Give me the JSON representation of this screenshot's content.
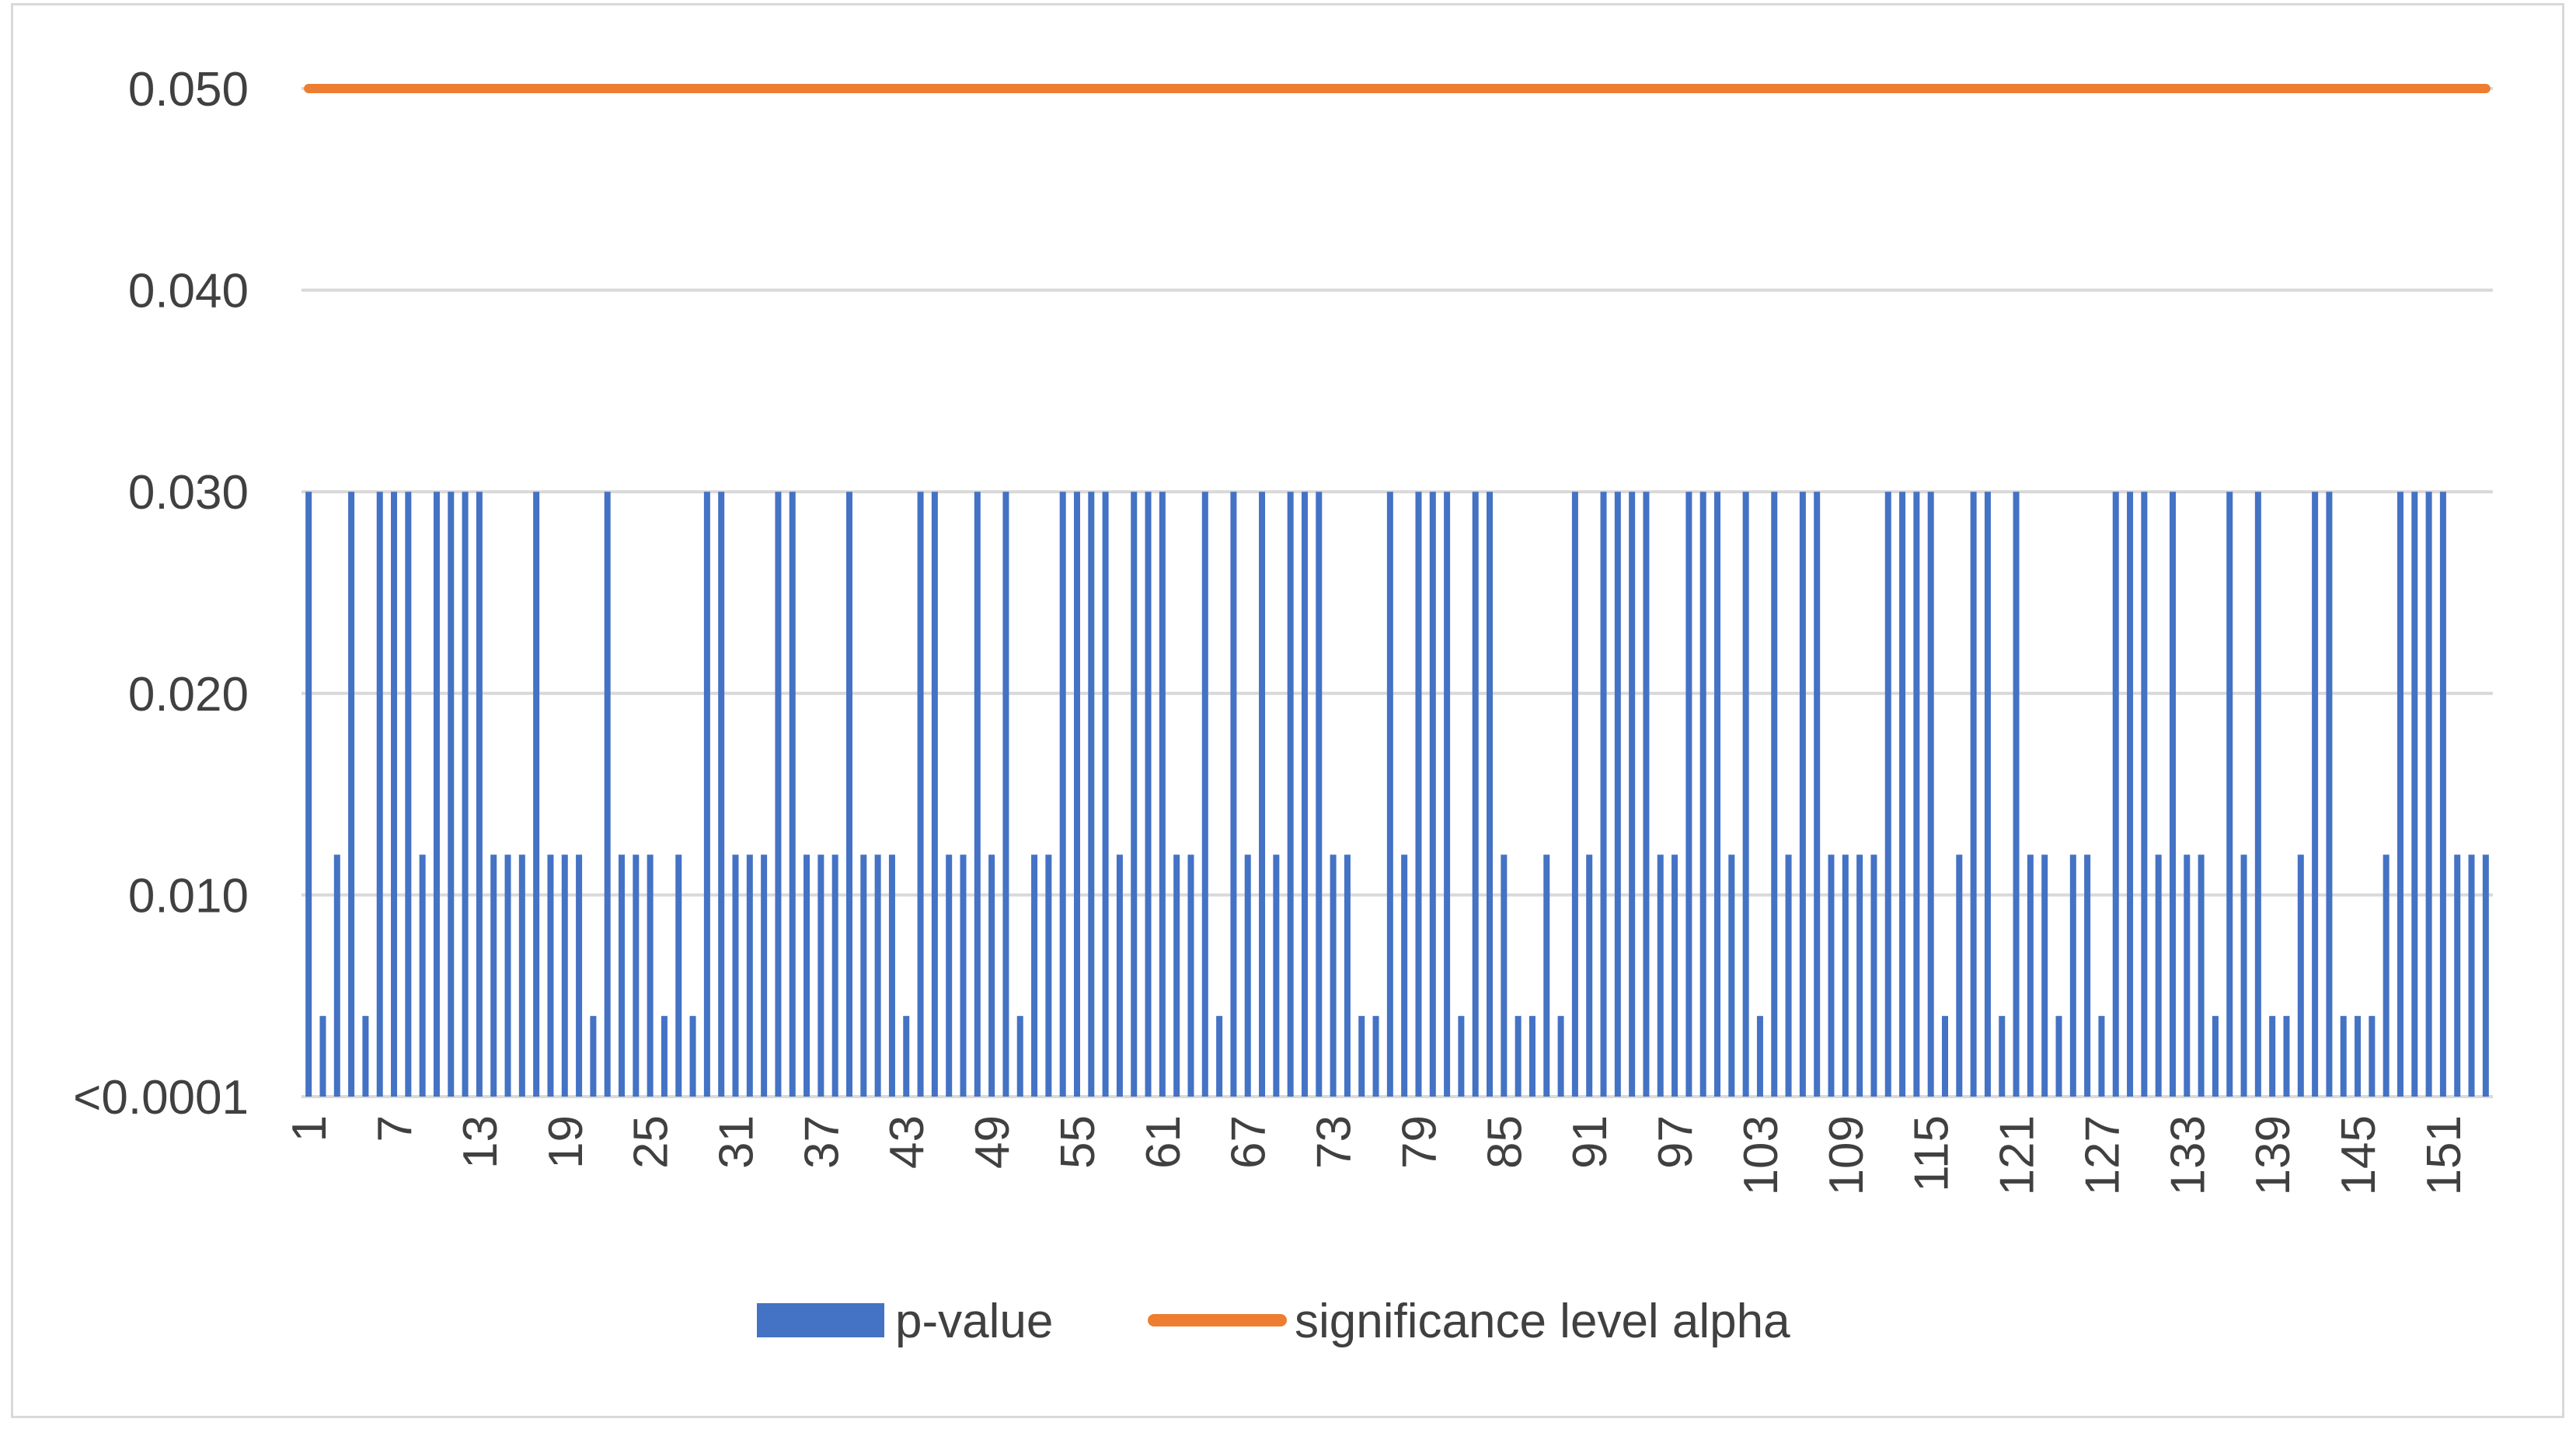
{
  "chart_data": {
    "type": "bar",
    "title": "",
    "xlabel": "",
    "ylabel": "",
    "ylim": [
      0,
      0.05
    ],
    "y_ticks": [
      {
        "value": 0.05,
        "label": "0.050"
      },
      {
        "value": 0.04,
        "label": "0.040"
      },
      {
        "value": 0.03,
        "label": "0.030"
      },
      {
        "value": 0.02,
        "label": "0.020"
      },
      {
        "value": 0.01,
        "label": "0.010"
      },
      {
        "value": 0,
        "label": "<0.0001"
      }
    ],
    "grid": true,
    "legend_position": "bottom",
    "x": [
      1,
      2,
      3,
      4,
      5,
      6,
      7,
      8,
      9,
      10,
      11,
      12,
      13,
      14,
      15,
      16,
      17,
      18,
      19,
      20,
      21,
      22,
      23,
      24,
      25,
      26,
      27,
      28,
      29,
      30,
      31,
      32,
      33,
      34,
      35,
      36,
      37,
      38,
      39,
      40,
      41,
      42,
      43,
      44,
      45,
      46,
      47,
      48,
      49,
      50,
      51,
      52,
      53,
      54,
      55,
      56,
      57,
      58,
      59,
      60,
      61,
      62,
      63,
      64,
      65,
      66,
      67,
      68,
      69,
      70,
      71,
      72,
      73,
      74,
      75,
      76,
      77,
      78,
      79,
      80,
      81,
      82,
      83,
      84,
      85,
      86,
      87,
      88,
      89,
      90,
      91,
      92,
      93,
      94,
      95,
      96,
      97,
      98,
      99,
      100,
      101,
      102,
      103,
      104,
      105,
      106,
      107,
      108,
      109,
      110,
      111,
      112,
      113,
      114,
      115,
      116,
      117,
      118,
      119,
      120,
      121,
      122,
      123,
      124,
      125,
      126,
      127,
      128,
      129,
      130,
      131,
      132,
      133,
      134,
      135,
      136,
      137,
      138,
      139,
      140,
      141,
      142,
      143,
      144,
      145,
      146,
      147,
      148,
      149,
      150,
      151,
      152,
      153,
      154
    ],
    "x_tick_labels": [
      "1",
      "7",
      "13",
      "19",
      "25",
      "31",
      "37",
      "43",
      "49",
      "55",
      "61",
      "67",
      "73",
      "79",
      "85",
      "91",
      "97",
      "103",
      "109",
      "115",
      "121",
      "127",
      "133",
      "139",
      "145",
      "151"
    ],
    "series": [
      {
        "name": "p-value",
        "type": "bar",
        "color": "#4472c4",
        "values": [
          0.03,
          0.004,
          0.012,
          0.03,
          0.004,
          0.03,
          0.03,
          0.03,
          0.012,
          0.03,
          0.03,
          0.03,
          0.03,
          0.012,
          0.012,
          0.012,
          0.03,
          0.012,
          0.012,
          0.012,
          0.004,
          0.03,
          0.012,
          0.012,
          0.012,
          0.004,
          0.012,
          0.004,
          0.03,
          0.03,
          0.012,
          0.012,
          0.012,
          0.03,
          0.03,
          0.012,
          0.012,
          0.012,
          0.03,
          0.012,
          0.012,
          0.012,
          0.004,
          0.03,
          0.03,
          0.012,
          0.012,
          0.03,
          0.012,
          0.03,
          0.004,
          0.012,
          0.012,
          0.03,
          0.03,
          0.03,
          0.03,
          0.012,
          0.03,
          0.03,
          0.03,
          0.012,
          0.012,
          0.03,
          0.004,
          0.03,
          0.012,
          0.03,
          0.012,
          0.03,
          0.03,
          0.03,
          0.012,
          0.012,
          0.004,
          0.004,
          0.03,
          0.012,
          0.03,
          0.03,
          0.03,
          0.004,
          0.03,
          0.03,
          0.012,
          0.004,
          0.004,
          0.012,
          0.004,
          0.03,
          0.012,
          0.03,
          0.03,
          0.03,
          0.03,
          0.012,
          0.012,
          0.03,
          0.03,
          0.03,
          0.012,
          0.03,
          0.004,
          0.03,
          0.012,
          0.03,
          0.03,
          0.012,
          0.012,
          0.012,
          0.012,
          0.03,
          0.03,
          0.03,
          0.03,
          0.004,
          0.012,
          0.03,
          0.03,
          0.004,
          0.03,
          0.012,
          0.012,
          0.004,
          0.012,
          0.012,
          0.004,
          0.03,
          0.03,
          0.03,
          0.012,
          0.03,
          0.012,
          0.012,
          0.004,
          0.03,
          0.012,
          0.03,
          0.004,
          0.004,
          0.012,
          0.03,
          0.03,
          0.004,
          0.004,
          0.004,
          0.012,
          0.03,
          0.03,
          0.03,
          0.03,
          0.012,
          0.012,
          0.012
        ]
      },
      {
        "name": "significance level alpha",
        "type": "line",
        "color": "#ed7d31",
        "value": 0.05
      }
    ]
  },
  "colors": {
    "gridline": "#d9d9d9",
    "text": "#404040",
    "frame": "#d9d9d9"
  }
}
